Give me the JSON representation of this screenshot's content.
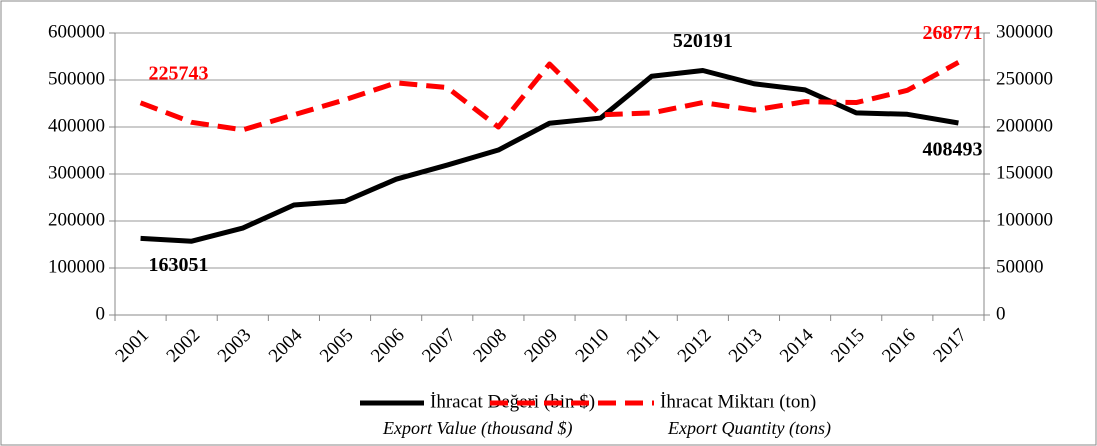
{
  "chart_data": {
    "type": "line",
    "categories": [
      "2001",
      "2002",
      "2003",
      "2004",
      "2005",
      "2006",
      "2007",
      "2008",
      "2009",
      "2010",
      "2011",
      "2012",
      "2013",
      "2014",
      "2015",
      "2016",
      "2017"
    ],
    "series": [
      {
        "name": "İhracat Değeri (bin $)",
        "name_en": "Export Value (thousand $)",
        "color": "#000000",
        "dash": false,
        "values": [
          163051,
          157000,
          185000,
          234000,
          242000,
          289000,
          319000,
          351000,
          408000,
          419000,
          508000,
          520191,
          492000,
          479000,
          430000,
          427000,
          408493
        ],
        "value_labels": [
          "163051",
          null,
          null,
          null,
          null,
          null,
          null,
          null,
          null,
          null,
          null,
          "520191",
          null,
          null,
          null,
          null,
          "408493"
        ]
      },
      {
        "name": "İhracat Miktarı (ton)",
        "name_en": "Export Quantity (tons)",
        "color": "#ff0000",
        "dash": true,
        "axis": "y2",
        "values": [
          225743,
          205000,
          197000,
          213000,
          229000,
          247000,
          242000,
          200000,
          267000,
          213000,
          215000,
          226000,
          218000,
          227000,
          226000,
          239000,
          268771
        ],
        "value_labels": [
          "225743",
          null,
          null,
          null,
          null,
          null,
          null,
          null,
          null,
          null,
          null,
          null,
          null,
          null,
          null,
          null,
          "268771"
        ]
      }
    ],
    "ylim": [
      0,
      600000
    ],
    "yticks": [
      0,
      100000,
      200000,
      300000,
      400000,
      500000,
      600000
    ],
    "y2lim": [
      0,
      300000
    ],
    "y2ticks": [
      0,
      50000,
      100000,
      150000,
      200000,
      250000,
      300000
    ],
    "grid": true
  }
}
